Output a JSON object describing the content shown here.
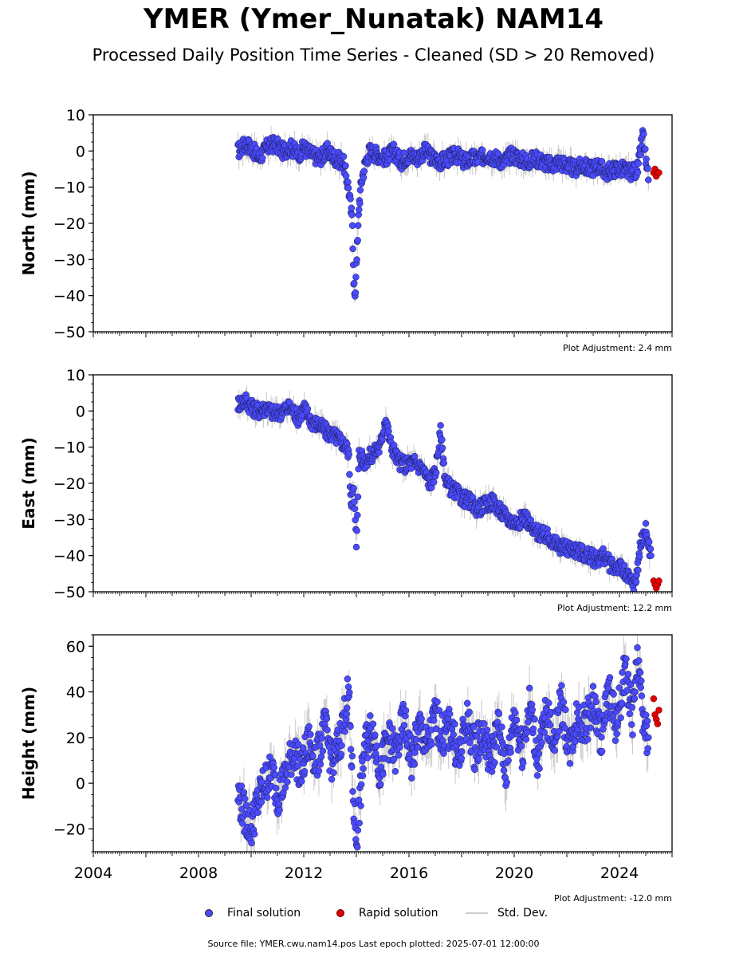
{
  "title": "YMER (Ymer_Nunatak) NAM14",
  "subtitle": "Processed Daily Position Time Series - Cleaned (SD > 20 Removed)",
  "legend": {
    "final": "Final solution",
    "rapid": "Rapid solution",
    "std": "Std. Dev."
  },
  "footer": "Source file: YMER.cwu.nam14.pos  Last epoch plotted: 2025-07-01 12:00:00",
  "colors": {
    "final": "#4a4aff",
    "rapid": "#e00000",
    "std": "#888888"
  },
  "chart_data": [
    {
      "type": "scatter",
      "ylabel": "North (mm)",
      "adjustment": "Plot Adjustment: 2.4 mm",
      "ylim": [
        -50,
        10
      ],
      "yticks": [
        10,
        0,
        -10,
        -20,
        -30,
        -40,
        -50
      ],
      "xlim": [
        2004,
        2026
      ],
      "final": {
        "x": [
          2009.5,
          2009.8,
          2010.0,
          2010.3,
          2010.6,
          2010.9,
          2011.2,
          2011.5,
          2011.8,
          2012.0,
          2012.3,
          2012.6,
          2012.9,
          2013.2,
          2013.5,
          2013.7,
          2013.85,
          2013.9,
          2013.95,
          2014.0,
          2014.05,
          2014.1,
          2014.2,
          2014.35,
          2014.5,
          2014.8,
          2015.1,
          2015.4,
          2015.7,
          2016.0,
          2016.3,
          2016.6,
          2016.9,
          2017.2,
          2017.5,
          2017.8,
          2018.1,
          2018.4,
          2018.7,
          2019.0,
          2019.3,
          2019.6,
          2019.9,
          2020.2,
          2020.5,
          2020.8,
          2021.1,
          2021.4,
          2021.7,
          2022.0,
          2022.3,
          2022.6,
          2022.9,
          2023.2,
          2023.5,
          2023.8,
          2024.1,
          2024.4,
          2024.7,
          2024.9,
          2025.0,
          2025.1
        ],
        "y": [
          0,
          2,
          1,
          -2,
          1,
          2,
          0,
          1,
          -1,
          1,
          -1,
          -2,
          0,
          -2,
          -3,
          -10,
          -20,
          -35,
          -42,
          -30,
          -25,
          -15,
          -8,
          -3,
          0,
          -1,
          -2,
          0,
          -3,
          -1,
          -2,
          0,
          -2,
          -3,
          -2,
          -1,
          -3,
          -2,
          -2,
          -1,
          -2,
          -3,
          -1,
          -2,
          -3,
          -2,
          -3,
          -4,
          -3,
          -4,
          -5,
          -4,
          -5,
          -4,
          -6,
          -5,
          -5,
          -6,
          -5,
          5,
          -3,
          -8
        ]
      },
      "rapid": {
        "x": [
          2025.3,
          2025.35,
          2025.4,
          2025.45,
          2025.5
        ],
        "y": [
          -6,
          -5,
          -7,
          -6,
          -6
        ]
      }
    },
    {
      "type": "scatter",
      "ylabel": "East (mm)",
      "adjustment": "Plot Adjustment: 12.2 mm",
      "ylim": [
        -50,
        10
      ],
      "yticks": [
        10,
        0,
        -10,
        -20,
        -30,
        -40,
        -50
      ],
      "xlim": [
        2004,
        2026
      ],
      "final": {
        "x": [
          2009.5,
          2009.8,
          2010.0,
          2010.3,
          2010.6,
          2010.9,
          2011.2,
          2011.5,
          2011.8,
          2012.0,
          2012.3,
          2012.6,
          2012.9,
          2013.2,
          2013.5,
          2013.7,
          2013.8,
          2013.9,
          2014.0,
          2014.1,
          2014.3,
          2014.6,
          2014.9,
          2015.1,
          2015.3,
          2015.6,
          2015.9,
          2016.2,
          2016.5,
          2016.8,
          2017.0,
          2017.2,
          2017.4,
          2017.7,
          2018.0,
          2018.3,
          2018.6,
          2018.9,
          2019.2,
          2019.5,
          2019.8,
          2020.1,
          2020.4,
          2020.7,
          2021.0,
          2021.3,
          2021.6,
          2021.9,
          2022.2,
          2022.5,
          2022.8,
          2023.1,
          2023.4,
          2023.7,
          2024.0,
          2024.3,
          2024.6,
          2024.8,
          2025.0,
          2025.2
        ],
        "y": [
          2,
          3,
          1,
          0,
          1,
          -1,
          0,
          1,
          -2,
          1,
          -3,
          -4,
          -6,
          -7,
          -9,
          -11,
          -25,
          -22,
          -37,
          -12,
          -14,
          -12,
          -10,
          -2,
          -9,
          -14,
          -15,
          -14,
          -16,
          -20,
          -17,
          -6,
          -20,
          -22,
          -24,
          -25,
          -27,
          -26,
          -25,
          -28,
          -30,
          -31,
          -29,
          -33,
          -34,
          -35,
          -37,
          -38,
          -38,
          -39,
          -40,
          -41,
          -40,
          -43,
          -43,
          -46,
          -48,
          -37,
          -33,
          -40
        ]
      },
      "rapid": {
        "x": [
          2025.3,
          2025.35,
          2025.4,
          2025.45,
          2025.5
        ],
        "y": [
          -47,
          -48,
          -49,
          -48,
          -47
        ]
      }
    },
    {
      "type": "scatter",
      "ylabel": "Height (mm)",
      "adjustment": "Plot Adjustment: -12.0 mm",
      "ylim": [
        -30,
        65
      ],
      "yticks": [
        60,
        40,
        20,
        0,
        -20
      ],
      "xlim": [
        2004,
        2026
      ],
      "xticks": [
        "2004",
        "2008",
        "2012",
        "2016",
        "2020",
        "2024"
      ],
      "final": {
        "x": [
          2009.5,
          2009.8,
          2010.0,
          2010.2,
          2010.5,
          2010.8,
          2011.0,
          2011.3,
          2011.6,
          2011.9,
          2012.2,
          2012.5,
          2012.8,
          2013.1,
          2013.4,
          2013.7,
          2013.9,
          2014.0,
          2014.3,
          2014.6,
          2014.9,
          2015.2,
          2015.5,
          2015.8,
          2016.1,
          2016.4,
          2016.7,
          2017.0,
          2017.3,
          2017.6,
          2017.9,
          2018.2,
          2018.5,
          2018.8,
          2019.1,
          2019.4,
          2019.7,
          2020.0,
          2020.3,
          2020.6,
          2020.9,
          2021.2,
          2021.5,
          2021.8,
          2022.1,
          2022.4,
          2022.7,
          2023.0,
          2023.3,
          2023.6,
          2023.9,
          2024.2,
          2024.5,
          2024.7,
          2024.9,
          2025.1
        ],
        "y": [
          -5,
          -15,
          -20,
          -10,
          0,
          5,
          -5,
          2,
          15,
          5,
          18,
          10,
          25,
          8,
          20,
          40,
          -10,
          -25,
          15,
          25,
          5,
          20,
          12,
          28,
          10,
          25,
          15,
          30,
          20,
          25,
          10,
          28,
          15,
          22,
          10,
          25,
          5,
          30,
          15,
          35,
          10,
          30,
          20,
          35,
          15,
          30,
          25,
          35,
          20,
          40,
          25,
          50,
          30,
          55,
          25,
          20
        ]
      },
      "rapid": {
        "x": [
          2025.3,
          2025.35,
          2025.4,
          2025.45,
          2025.5
        ],
        "y": [
          37,
          30,
          28,
          26,
          32
        ]
      }
    }
  ]
}
